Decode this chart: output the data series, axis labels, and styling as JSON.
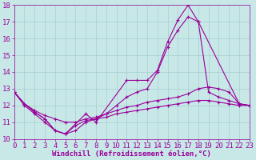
{
  "series": [
    {
      "x": [
        0,
        1,
        2,
        3,
        4,
        5,
        7,
        8,
        11,
        12,
        13,
        14,
        15,
        16,
        17,
        18,
        22,
        23
      ],
      "y": [
        12.8,
        12.1,
        11.6,
        11.2,
        10.5,
        10.3,
        11.5,
        11.0,
        13.5,
        13.5,
        13.5,
        14.1,
        15.8,
        17.1,
        18.0,
        17.0,
        12.1,
        12.0
      ]
    },
    {
      "x": [
        0,
        1,
        2,
        3,
        4,
        5,
        6,
        7,
        8,
        9,
        10,
        11,
        12,
        13,
        14,
        15,
        16,
        17,
        18,
        19,
        20,
        21,
        22,
        23
      ],
      "y": [
        12.8,
        12.1,
        11.6,
        11.2,
        10.5,
        10.3,
        10.8,
        11.1,
        11.2,
        11.5,
        12.0,
        12.5,
        12.8,
        13.0,
        14.0,
        15.5,
        16.5,
        17.3,
        17.0,
        12.8,
        12.5,
        12.3,
        12.1,
        12.0
      ]
    },
    {
      "x": [
        0,
        1,
        2,
        3,
        4,
        5,
        6,
        7,
        8,
        9,
        10,
        11,
        12,
        13,
        14,
        15,
        16,
        17,
        18,
        19,
        20,
        21,
        22,
        23
      ],
      "y": [
        12.8,
        12.1,
        11.7,
        11.4,
        11.2,
        11.0,
        11.0,
        11.2,
        11.3,
        11.5,
        11.7,
        11.9,
        12.0,
        12.2,
        12.3,
        12.4,
        12.5,
        12.7,
        13.0,
        13.1,
        13.0,
        12.8,
        12.1,
        12.0
      ]
    },
    {
      "x": [
        0,
        1,
        2,
        3,
        4,
        5,
        6,
        7,
        8,
        9,
        10,
        11,
        12,
        13,
        14,
        15,
        16,
        17,
        18,
        19,
        20,
        21,
        22,
        23
      ],
      "y": [
        12.8,
        12.0,
        11.5,
        11.0,
        10.5,
        10.3,
        10.5,
        11.0,
        11.2,
        11.3,
        11.5,
        11.6,
        11.7,
        11.8,
        11.9,
        12.0,
        12.1,
        12.2,
        12.3,
        12.3,
        12.2,
        12.1,
        12.0,
        12.0
      ]
    }
  ],
  "color": "#990099",
  "bg_color": "#c8e8e8",
  "grid_color": "#a8cece",
  "xlabel": "Windchill (Refroidissement éolien,°C)",
  "ylim": [
    10,
    18
  ],
  "xlim": [
    0,
    23
  ],
  "yticks": [
    10,
    11,
    12,
    13,
    14,
    15,
    16,
    17,
    18
  ],
  "xticks": [
    0,
    1,
    2,
    3,
    4,
    5,
    6,
    7,
    8,
    9,
    10,
    11,
    12,
    13,
    14,
    15,
    16,
    17,
    18,
    19,
    20,
    21,
    22,
    23
  ],
  "marker": "+",
  "linewidth": 0.8,
  "markersize": 3.5,
  "fontsize": 6.5
}
